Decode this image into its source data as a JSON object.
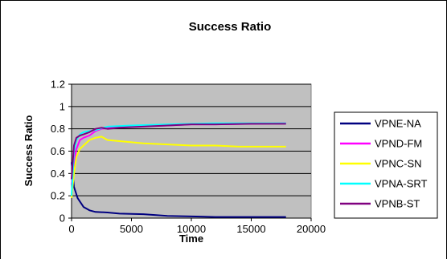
{
  "chart_data": {
    "type": "line",
    "title": "Success Ratio",
    "xlabel": "Time",
    "ylabel": "Success Ratio",
    "xlim": [
      0,
      20000
    ],
    "ylim": [
      0,
      1.2
    ],
    "xticks": [
      "0",
      "5000",
      "10000",
      "15000",
      "20000"
    ],
    "yticks": [
      "0",
      "0.2",
      "0.4",
      "0.6",
      "0.8",
      "1",
      "1.2"
    ],
    "plot_background": "#c0c0c0",
    "grid": "horizontal",
    "legend": "right",
    "series": [
      {
        "name": "VPNE-NA",
        "color": "#000080",
        "points": [
          [
            0,
            0.5
          ],
          [
            200,
            0.28
          ],
          [
            500,
            0.18
          ],
          [
            1000,
            0.1
          ],
          [
            1500,
            0.07
          ],
          [
            2000,
            0.055
          ],
          [
            3000,
            0.05
          ],
          [
            4000,
            0.04
          ],
          [
            6000,
            0.035
          ],
          [
            8000,
            0.02
          ],
          [
            10000,
            0.015
          ],
          [
            12000,
            0.01
          ],
          [
            14000,
            0.01
          ],
          [
            16000,
            0.01
          ],
          [
            17900,
            0.01
          ]
        ]
      },
      {
        "name": "VPND-FM",
        "color": "#ff00ff",
        "points": [
          [
            0,
            0.3
          ],
          [
            200,
            0.5
          ],
          [
            400,
            0.62
          ],
          [
            700,
            0.7
          ],
          [
            1000,
            0.72
          ],
          [
            1500,
            0.74
          ],
          [
            2000,
            0.78
          ],
          [
            2500,
            0.8
          ],
          [
            3000,
            0.81
          ],
          [
            5000,
            0.82
          ],
          [
            8000,
            0.83
          ],
          [
            10000,
            0.84
          ],
          [
            12000,
            0.84
          ],
          [
            15000,
            0.845
          ],
          [
            17900,
            0.85
          ]
        ]
      },
      {
        "name": "VPNC-SN",
        "color": "#ffff00",
        "points": [
          [
            0,
            0.18
          ],
          [
            200,
            0.4
          ],
          [
            400,
            0.55
          ],
          [
            700,
            0.62
          ],
          [
            1000,
            0.65
          ],
          [
            1500,
            0.7
          ],
          [
            2000,
            0.72
          ],
          [
            2500,
            0.73
          ],
          [
            3000,
            0.7
          ],
          [
            4000,
            0.69
          ],
          [
            6000,
            0.67
          ],
          [
            8000,
            0.66
          ],
          [
            10000,
            0.65
          ],
          [
            12000,
            0.65
          ],
          [
            14000,
            0.64
          ],
          [
            16000,
            0.64
          ],
          [
            17900,
            0.64
          ]
        ]
      },
      {
        "name": "VPNA-SRT",
        "color": "#00ffff",
        "points": [
          [
            0,
            0.2
          ],
          [
            200,
            0.6
          ],
          [
            400,
            0.7
          ],
          [
            700,
            0.75
          ],
          [
            1000,
            0.77
          ],
          [
            1500,
            0.78
          ],
          [
            2000,
            0.79
          ],
          [
            3000,
            0.82
          ],
          [
            5000,
            0.83
          ],
          [
            8000,
            0.84
          ],
          [
            10000,
            0.845
          ],
          [
            12000,
            0.85
          ],
          [
            15000,
            0.85
          ],
          [
            17900,
            0.85
          ]
        ]
      },
      {
        "name": "VPNB-ST",
        "color": "#800080",
        "points": [
          [
            0,
            0.35
          ],
          [
            200,
            0.65
          ],
          [
            400,
            0.72
          ],
          [
            700,
            0.74
          ],
          [
            1000,
            0.75
          ],
          [
            1500,
            0.77
          ],
          [
            2000,
            0.8
          ],
          [
            2500,
            0.81
          ],
          [
            3000,
            0.8
          ],
          [
            4000,
            0.81
          ],
          [
            6000,
            0.82
          ],
          [
            8000,
            0.83
          ],
          [
            10000,
            0.84
          ],
          [
            12000,
            0.84
          ],
          [
            15000,
            0.845
          ],
          [
            17900,
            0.845
          ]
        ]
      }
    ]
  }
}
